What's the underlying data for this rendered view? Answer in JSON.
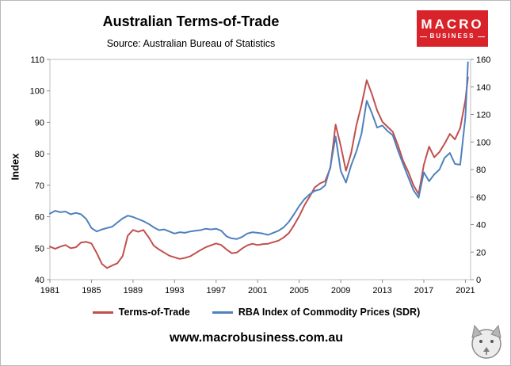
{
  "header": {
    "title": "Australian Terms-of-Trade",
    "subtitle": "Source: Australian Bureau of Statistics"
  },
  "logo": {
    "line1": "MACRO",
    "line2": "BUSINESS",
    "bg_color": "#d8232a"
  },
  "footer": {
    "url": "www.macrobusiness.com.au"
  },
  "chart_data": {
    "type": "line",
    "title": "Australian Terms-of-Trade",
    "ylabel_left": "Index",
    "legend_position": "bottom",
    "grid": false,
    "x_range": [
      1981,
      2021.5
    ],
    "x_ticks": [
      1981,
      1985,
      1989,
      1993,
      1997,
      2001,
      2005,
      2009,
      2013,
      2017,
      2021
    ],
    "y_left": {
      "min": 40,
      "max": 110,
      "ticks": [
        40,
        50,
        60,
        70,
        80,
        90,
        100,
        110
      ]
    },
    "y_right": {
      "min": 0,
      "max": 160,
      "ticks": [
        0,
        20,
        40,
        60,
        80,
        100,
        120,
        140,
        160
      ]
    },
    "x": [
      1981,
      1981.5,
      1982,
      1982.5,
      1983,
      1983.5,
      1984,
      1984.5,
      1985,
      1985.5,
      1986,
      1986.5,
      1987,
      1987.5,
      1988,
      1988.5,
      1989,
      1989.5,
      1990,
      1990.5,
      1991,
      1991.5,
      1992,
      1992.5,
      1993,
      1993.5,
      1994,
      1994.5,
      1995,
      1995.5,
      1996,
      1996.5,
      1997,
      1997.5,
      1998,
      1998.5,
      1999,
      1999.5,
      2000,
      2000.5,
      2001,
      2001.5,
      2002,
      2002.5,
      2003,
      2003.5,
      2004,
      2004.5,
      2005,
      2005.5,
      2006,
      2006.5,
      2007,
      2007.5,
      2008,
      2008.5,
      2009,
      2009.5,
      2010,
      2010.5,
      2011,
      2011.5,
      2012,
      2012.5,
      2013,
      2013.5,
      2014,
      2014.5,
      2015,
      2015.5,
      2016,
      2016.5,
      2017,
      2017.5,
      2018,
      2018.5,
      2019,
      2019.5,
      2020,
      2020.5,
      2021,
      2021.25
    ],
    "series": [
      {
        "name": "Terms-of-Trade",
        "axis": "left",
        "color": "#c0504d",
        "values": [
          50.5,
          49.8,
          50.5,
          51,
          50,
          50.3,
          51.8,
          52,
          51.5,
          48.5,
          45,
          43.7,
          44.5,
          45.2,
          47.5,
          54,
          55.8,
          55.2,
          55.8,
          53.5,
          50.8,
          49.6,
          48.6,
          47.6,
          47.1,
          46.6,
          46.9,
          47.4,
          48.4,
          49.4,
          50.3,
          50.9,
          51.5,
          51,
          49.6,
          48.4,
          48.6,
          49.9,
          50.9,
          51.4,
          51,
          51.3,
          51.4,
          51.9,
          52.4,
          53.4,
          54.8,
          57.3,
          60.2,
          63.6,
          66.4,
          69.3,
          70.6,
          71.3,
          75.5,
          89.3,
          82.5,
          74.6,
          80.2,
          89,
          95.5,
          103.4,
          99,
          93.8,
          90.2,
          88.6,
          87,
          82.8,
          77.8,
          74.3,
          70,
          67.2,
          76.5,
          82.3,
          78.9,
          80.6,
          83.2,
          86.3,
          84.6,
          88.2,
          97,
          104.3
        ]
      },
      {
        "name": "RBA Index of Commodity Prices (SDR)",
        "axis": "right",
        "color": "#4f81bd",
        "values": [
          48,
          50,
          49,
          49.5,
          47.5,
          48.5,
          47.5,
          44,
          37.5,
          35,
          36.5,
          37.5,
          38.5,
          41.5,
          44.5,
          46.5,
          45.5,
          44,
          42.5,
          40.5,
          38,
          36,
          36.5,
          35,
          33.5,
          34.5,
          34,
          35,
          35.5,
          36,
          37,
          36.5,
          37,
          35.5,
          31.5,
          30,
          29.5,
          31,
          33.5,
          34.5,
          34,
          33.5,
          32.5,
          34,
          35.5,
          38,
          42,
          47.5,
          53.5,
          58.5,
          62,
          64.5,
          65.5,
          68.5,
          82,
          104,
          79,
          70.5,
          83,
          93,
          106,
          130,
          121,
          110.5,
          112,
          108,
          105,
          94,
          84,
          74.5,
          65,
          59.5,
          78,
          71.5,
          76.5,
          80,
          88.5,
          92,
          84,
          83.5,
          118,
          158
        ]
      }
    ]
  }
}
